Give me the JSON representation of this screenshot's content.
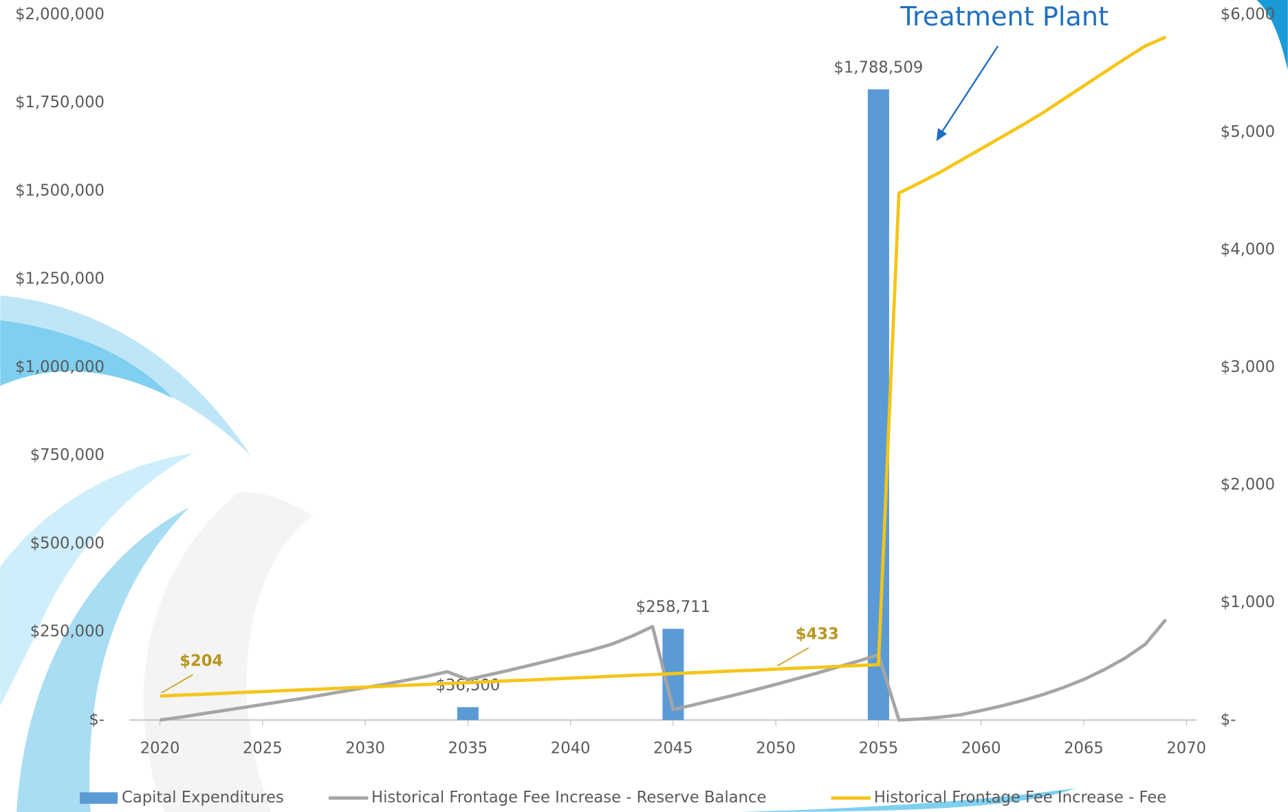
{
  "chart_data": {
    "type": "combo",
    "annotations": [
      {
        "text": "Treatment Plant"
      }
    ],
    "xlim": [
      2018.5,
      2070.5
    ],
    "xticks": [
      2020,
      2025,
      2030,
      2035,
      2040,
      2045,
      2050,
      2055,
      2060,
      2065,
      2070
    ],
    "ylim": [
      0,
      2000000
    ],
    "yticks": [
      {
        "value": 0,
        "label": "$-"
      },
      {
        "value": 250000,
        "label": "$250,000"
      },
      {
        "value": 500000,
        "label": "$500,000"
      },
      {
        "value": 750000,
        "label": "$750,000"
      },
      {
        "value": 1000000,
        "label": "$1,000,000"
      },
      {
        "value": 1250000,
        "label": "$1,250,000"
      },
      {
        "value": 1500000,
        "label": "$1,500,000"
      },
      {
        "value": 1750000,
        "label": "$1,750,000"
      },
      {
        "value": 2000000,
        "label": "$2,000,000"
      }
    ],
    "y2lim": [
      0,
      6000
    ],
    "y2ticks": [
      {
        "value": 0,
        "label": "$-"
      },
      {
        "value": 1000,
        "label": "$1,000"
      },
      {
        "value": 2000,
        "label": "$2,000"
      },
      {
        "value": 3000,
        "label": "$3,000"
      },
      {
        "value": 4000,
        "label": "$4,000"
      },
      {
        "value": 5000,
        "label": "$5,000"
      },
      {
        "value": 6000,
        "label": "$6,000"
      }
    ],
    "series": [
      {
        "name": "Capital Expenditures",
        "type": "bar",
        "color": "#5b9bd5",
        "x": [
          2035,
          2045,
          2055
        ],
        "values": [
          36500,
          258711,
          1788509
        ],
        "value_labels": [
          "$36,500",
          "$258,711",
          "$1,788,509"
        ]
      },
      {
        "name": "Historical Frontage Fee Increase - Reserve Balance",
        "type": "line",
        "color": "#a5a5a5",
        "x": [
          2020,
          2021,
          2022,
          2023,
          2024,
          2025,
          2026,
          2027,
          2028,
          2029,
          2030,
          2031,
          2032,
          2033,
          2034,
          2035,
          2036,
          2037,
          2038,
          2039,
          2040,
          2041,
          2042,
          2043,
          2044,
          2045,
          2046,
          2047,
          2048,
          2049,
          2050,
          2051,
          2052,
          2053,
          2054,
          2055,
          2056,
          2057,
          2058,
          2059,
          2060,
          2061,
          2062,
          2063,
          2064,
          2065,
          2066,
          2067,
          2068,
          2069
        ],
        "values": [
          0,
          8000,
          17000,
          26000,
          35000,
          44000,
          53000,
          62000,
          72000,
          82000,
          92000,
          102000,
          113000,
          124000,
          137000,
          115000,
          128000,
          141000,
          155000,
          169000,
          184000,
          198000,
          215000,
          238000,
          265000,
          30000,
          43000,
          57000,
          71000,
          86000,
          101000,
          117000,
          133000,
          150000,
          167000,
          185000,
          0,
          3000,
          8000,
          15000,
          27000,
          40000,
          55000,
          72000,
          92000,
          115000,
          143000,
          175000,
          215000,
          285000
        ]
      },
      {
        "name": "Historical Frontage Fee Increase - Fee",
        "type": "line",
        "axis": "y2",
        "color": "#f5c518",
        "x": [
          2020,
          2021,
          2022,
          2023,
          2024,
          2025,
          2026,
          2027,
          2028,
          2029,
          2030,
          2031,
          2032,
          2033,
          2034,
          2035,
          2036,
          2037,
          2038,
          2039,
          2040,
          2041,
          2042,
          2043,
          2044,
          2045,
          2046,
          2047,
          2048,
          2049,
          2050,
          2051,
          2052,
          2053,
          2054,
          2055,
          2056,
          2057,
          2058,
          2059,
          2060,
          2061,
          2062,
          2063,
          2064,
          2065,
          2066,
          2067,
          2068,
          2069
        ],
        "values": [
          204,
          212,
          219,
          227,
          235,
          242,
          250,
          257,
          265,
          273,
          280,
          288,
          296,
          303,
          311,
          318,
          326,
          334,
          341,
          349,
          357,
          364,
          372,
          380,
          387,
          395,
          402,
          410,
          418,
          425,
          433,
          441,
          448,
          456,
          464,
          471,
          4484,
          4570,
          4660,
          4760,
          4860,
          4960,
          5060,
          5165,
          5280,
          5395,
          5510,
          5625,
          5735,
          5811
        ],
        "value_labels": [
          "$204",
          null,
          null,
          null,
          null,
          null,
          null,
          null,
          null,
          null,
          null,
          null,
          null,
          null,
          null,
          null,
          null,
          null,
          null,
          null,
          null,
          null,
          null,
          null,
          null,
          null,
          null,
          null,
          null,
          null,
          "$433",
          null,
          null,
          null,
          null,
          null,
          null,
          null,
          null,
          null,
          null,
          null,
          null,
          null,
          null,
          null,
          null,
          null,
          null,
          null
        ]
      }
    ]
  }
}
